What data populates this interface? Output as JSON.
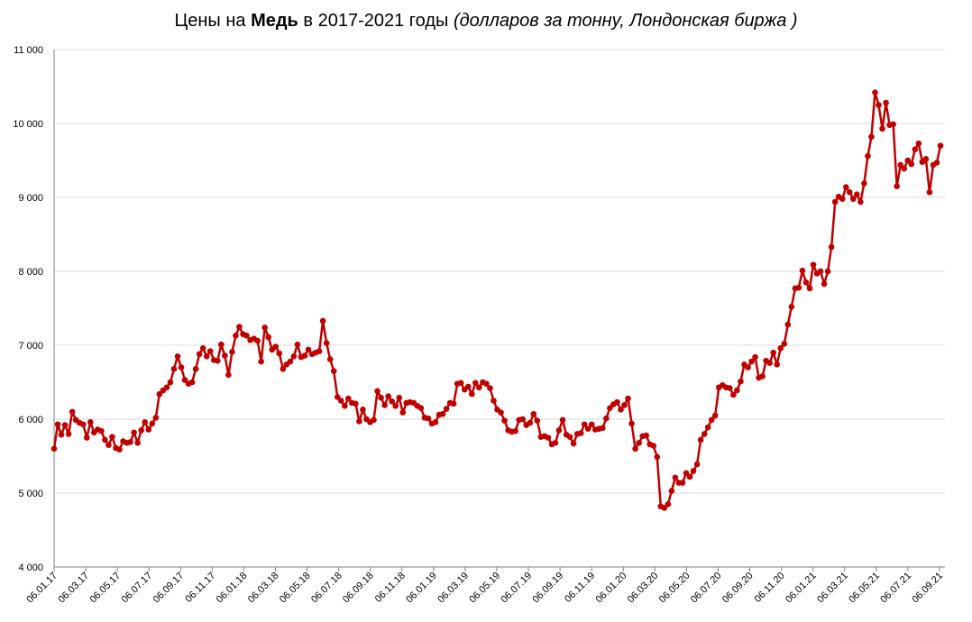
{
  "chart_data": {
    "type": "line",
    "title": {
      "prefix": "Цены на ",
      "bold": "Медь",
      "middle": " в 2017-2021 годы ",
      "italic": "(долларов за тонну, Лондонская биржа )"
    },
    "xlabel": "",
    "ylabel": "",
    "ylim": [
      4000,
      11000
    ],
    "yticks": [
      4000,
      5000,
      6000,
      7000,
      8000,
      9000,
      10000,
      11000
    ],
    "ytick_labels": [
      "4 000",
      "5 000",
      "6 000",
      "7 000",
      "8 000",
      "9 000",
      "10 000",
      "11 000"
    ],
    "xtick_labels": [
      "06.01.17",
      "06.03.17",
      "06.05.17",
      "06.07.17",
      "06.09.17",
      "06.11.17",
      "06.01.18",
      "06.03.18",
      "06.05.18",
      "06.07.18",
      "06.09.18",
      "06.11.18",
      "06.01.19",
      "06.03.19",
      "06.05.19",
      "06.07.19",
      "06.09.19",
      "06.11.19",
      "06.01.20",
      "06.03.20",
      "06.05.20",
      "06.07.20",
      "06.09.20",
      "06.11.20",
      "06.01.21",
      "06.03.21",
      "06.05.21",
      "06.07.21",
      "06.09.21"
    ],
    "grid": true,
    "legend": "none",
    "line_color": "#c00000",
    "series": [
      {
        "values": [
          5600,
          5930,
          5790,
          5920,
          5800,
          6100,
          5990,
          5950,
          5930,
          5750,
          5960,
          5820,
          5860,
          5840,
          5720,
          5650,
          5760,
          5610,
          5590,
          5700,
          5680,
          5690,
          5820,
          5680,
          5850,
          5960,
          5860,
          5940,
          6020,
          6340,
          6390,
          6430,
          6500,
          6680,
          6850,
          6700,
          6530,
          6480,
          6500,
          6680,
          6880,
          6960,
          6850,
          6920,
          6800,
          6790,
          7010,
          6860,
          6600,
          6910,
          7130,
          7250,
          7150,
          7130,
          7070,
          7090,
          7060,
          6780,
          7240,
          7110,
          6940,
          6980,
          6890,
          6680,
          6740,
          6780,
          6850,
          7010,
          6840,
          6860,
          6940,
          6880,
          6900,
          6920,
          7330,
          7030,
          6810,
          6650,
          6300,
          6250,
          6180,
          6280,
          6220,
          6210,
          5970,
          6130,
          6000,
          5960,
          5990,
          6380,
          6290,
          6190,
          6310,
          6240,
          6180,
          6290,
          6090,
          6220,
          6230,
          6220,
          6180,
          6150,
          6020,
          6010,
          5940,
          5960,
          6060,
          6070,
          6140,
          6220,
          6210,
          6480,
          6490,
          6400,
          6440,
          6340,
          6490,
          6430,
          6500,
          6480,
          6420,
          6250,
          6130,
          6090,
          5980,
          5850,
          5830,
          5840,
          5990,
          6000,
          5920,
          5950,
          6070,
          5980,
          5760,
          5770,
          5750,
          5660,
          5680,
          5850,
          5990,
          5790,
          5760,
          5670,
          5800,
          5810,
          5930,
          5870,
          5930,
          5860,
          5870,
          5880,
          6010,
          6150,
          6200,
          6230,
          6130,
          6190,
          6280,
          5940,
          5600,
          5680,
          5770,
          5780,
          5660,
          5640,
          5490,
          4820,
          4800,
          4850,
          5030,
          5210,
          5140,
          5140,
          5270,
          5220,
          5300,
          5390,
          5720,
          5800,
          5890,
          5990,
          6050,
          6430,
          6460,
          6430,
          6420,
          6330,
          6390,
          6510,
          6740,
          6700,
          6780,
          6840,
          6560,
          6580,
          6790,
          6760,
          6900,
          6740,
          6960,
          7020,
          7280,
          7520,
          7770,
          7780,
          8010,
          7850,
          7770,
          8090,
          7970,
          8000,
          7830,
          8000,
          8330,
          8940,
          9010,
          8980,
          9140,
          9070,
          8980,
          9040,
          8940,
          9190,
          9560,
          9820,
          10420,
          10250,
          9930,
          10280,
          9980,
          9990,
          9150,
          9440,
          9390,
          9500,
          9450,
          9650,
          9730,
          9480,
          9520,
          9070,
          9440,
          9470,
          9700
        ]
      }
    ]
  }
}
